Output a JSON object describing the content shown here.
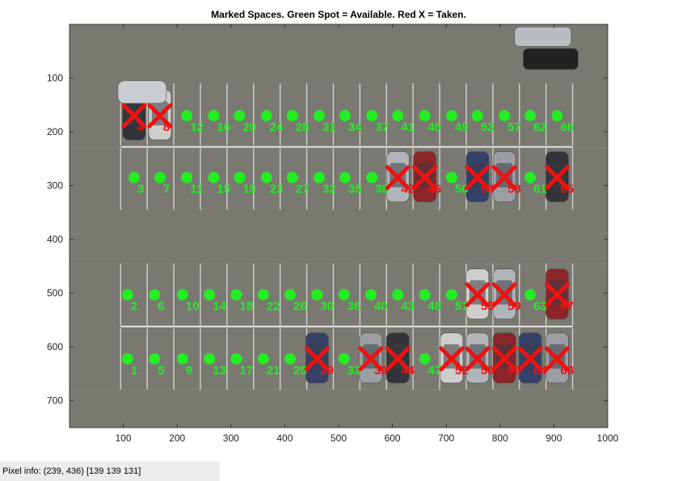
{
  "figure": {
    "title": "Marked Spaces.  Green Spot = Available.  Red X = Taken.",
    "colors": {
      "available": "#22ee22",
      "taken": "#ee1111",
      "asphalt": "#7d7c75",
      "paint": "#e8e8e4"
    }
  },
  "axes": {
    "xlim": [
      0,
      1000
    ],
    "ylim": [
      750,
      0
    ],
    "xticks": [
      100,
      200,
      300,
      400,
      500,
      600,
      700,
      800,
      900,
      1000
    ],
    "yticks": [
      100,
      200,
      300,
      400,
      500,
      600,
      700
    ]
  },
  "status_bar": {
    "label": "Pixel info:",
    "coords": "(239, 436)",
    "rgb": "[139 139 131]"
  },
  "chart_data": {
    "type": "scatter",
    "title": "Marked Spaces.  Green Spot = Available.  Red X = Taken.",
    "xlim": [
      0,
      1000
    ],
    "ylim": [
      750,
      0
    ],
    "y_reversed": true,
    "series": [
      {
        "name": "Green Spot = Available",
        "marker": "circle"
      },
      {
        "name": "Red X = Taken",
        "marker": "x"
      }
    ],
    "spots": [
      {
        "id": "4",
        "x": 120,
        "y": 170,
        "taken": true
      },
      {
        "id": "8",
        "x": 168,
        "y": 170,
        "taken": true
      },
      {
        "id": "12",
        "x": 218,
        "y": 170,
        "taken": false
      },
      {
        "id": "16",
        "x": 268,
        "y": 170,
        "taken": false
      },
      {
        "id": "20",
        "x": 316,
        "y": 170,
        "taken": false
      },
      {
        "id": "24",
        "x": 366,
        "y": 170,
        "taken": false
      },
      {
        "id": "28",
        "x": 414,
        "y": 170,
        "taken": false
      },
      {
        "id": "31",
        "x": 464,
        "y": 170,
        "taken": false
      },
      {
        "id": "34",
        "x": 512,
        "y": 170,
        "taken": false
      },
      {
        "id": "37",
        "x": 562,
        "y": 170,
        "taken": false
      },
      {
        "id": "41",
        "x": 610,
        "y": 170,
        "taken": false
      },
      {
        "id": "45",
        "x": 660,
        "y": 170,
        "taken": false
      },
      {
        "id": "49",
        "x": 710,
        "y": 170,
        "taken": false
      },
      {
        "id": "53",
        "x": 758,
        "y": 170,
        "taken": false
      },
      {
        "id": "57",
        "x": 808,
        "y": 170,
        "taken": false
      },
      {
        "id": "62",
        "x": 856,
        "y": 170,
        "taken": false
      },
      {
        "id": "66",
        "x": 906,
        "y": 170,
        "taken": false
      },
      {
        "id": "3",
        "x": 120,
        "y": 285,
        "taken": false
      },
      {
        "id": "7",
        "x": 168,
        "y": 285,
        "taken": false
      },
      {
        "id": "11",
        "x": 218,
        "y": 285,
        "taken": false
      },
      {
        "id": "15",
        "x": 268,
        "y": 285,
        "taken": false
      },
      {
        "id": "19",
        "x": 316,
        "y": 285,
        "taken": false
      },
      {
        "id": "23",
        "x": 366,
        "y": 285,
        "taken": false
      },
      {
        "id": "27",
        "x": 414,
        "y": 285,
        "taken": false
      },
      {
        "id": "32",
        "x": 464,
        "y": 285,
        "taken": false
      },
      {
        "id": "35",
        "x": 512,
        "y": 285,
        "taken": false
      },
      {
        "id": "38",
        "x": 562,
        "y": 285,
        "taken": false
      },
      {
        "id": "42",
        "x": 610,
        "y": 285,
        "taken": true
      },
      {
        "id": "46",
        "x": 660,
        "y": 285,
        "taken": true
      },
      {
        "id": "50",
        "x": 710,
        "y": 285,
        "taken": false
      },
      {
        "id": "54",
        "x": 758,
        "y": 285,
        "taken": true
      },
      {
        "id": "58",
        "x": 808,
        "y": 285,
        "taken": true
      },
      {
        "id": "61",
        "x": 856,
        "y": 285,
        "taken": false
      },
      {
        "id": "65",
        "x": 906,
        "y": 285,
        "taken": true
      },
      {
        "id": "2",
        "x": 108,
        "y": 503,
        "taken": false
      },
      {
        "id": "6",
        "x": 158,
        "y": 503,
        "taken": false
      },
      {
        "id": "10",
        "x": 210,
        "y": 503,
        "taken": false
      },
      {
        "id": "14",
        "x": 260,
        "y": 503,
        "taken": false
      },
      {
        "id": "18",
        "x": 310,
        "y": 503,
        "taken": false
      },
      {
        "id": "22",
        "x": 360,
        "y": 503,
        "taken": false
      },
      {
        "id": "26",
        "x": 410,
        "y": 503,
        "taken": false
      },
      {
        "id": "30",
        "x": 460,
        "y": 503,
        "taken": false
      },
      {
        "id": "36",
        "x": 510,
        "y": 503,
        "taken": false
      },
      {
        "id": "40",
        "x": 560,
        "y": 503,
        "taken": false
      },
      {
        "id": "43",
        "x": 610,
        "y": 503,
        "taken": false
      },
      {
        "id": "48",
        "x": 660,
        "y": 503,
        "taken": false
      },
      {
        "id": "51",
        "x": 710,
        "y": 503,
        "taken": false
      },
      {
        "id": "55",
        "x": 758,
        "y": 503,
        "taken": true
      },
      {
        "id": "59",
        "x": 808,
        "y": 503,
        "taken": true
      },
      {
        "id": "63",
        "x": 856,
        "y": 503,
        "taken": false
      },
      {
        "id": "67",
        "x": 906,
        "y": 503,
        "taken": true
      },
      {
        "id": "1",
        "x": 108,
        "y": 622,
        "taken": false
      },
      {
        "id": "5",
        "x": 158,
        "y": 622,
        "taken": false
      },
      {
        "id": "9",
        "x": 210,
        "y": 622,
        "taken": false
      },
      {
        "id": "13",
        "x": 260,
        "y": 622,
        "taken": false
      },
      {
        "id": "17",
        "x": 310,
        "y": 622,
        "taken": false
      },
      {
        "id": "21",
        "x": 360,
        "y": 622,
        "taken": false
      },
      {
        "id": "25",
        "x": 410,
        "y": 622,
        "taken": false
      },
      {
        "id": "29",
        "x": 460,
        "y": 622,
        "taken": true
      },
      {
        "id": "33",
        "x": 510,
        "y": 622,
        "taken": false
      },
      {
        "id": "39",
        "x": 560,
        "y": 622,
        "taken": true
      },
      {
        "id": "44",
        "x": 610,
        "y": 622,
        "taken": true
      },
      {
        "id": "47",
        "x": 660,
        "y": 622,
        "taken": false
      },
      {
        "id": "52",
        "x": 710,
        "y": 622,
        "taken": true
      },
      {
        "id": "56",
        "x": 758,
        "y": 622,
        "taken": true
      },
      {
        "id": "60",
        "x": 808,
        "y": 622,
        "taken": true
      },
      {
        "id": "64",
        "x": 856,
        "y": 622,
        "taken": true
      },
      {
        "id": "68",
        "x": 906,
        "y": 622,
        "taken": true
      }
    ]
  }
}
